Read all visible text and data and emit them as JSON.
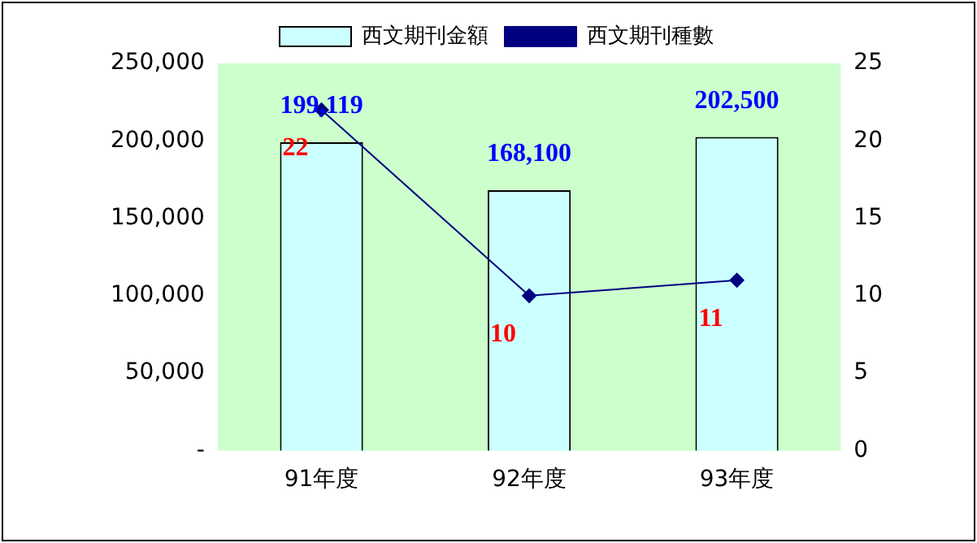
{
  "chart_data": {
    "type": "bar",
    "categories": [
      "91年度",
      "92年度",
      "93年度"
    ],
    "series": [
      {
        "name": "西文期刊金額",
        "color": "#ccffff",
        "values": [
          199119,
          168100,
          202500
        ],
        "value_labels": [
          "199,119",
          "168,100",
          "202,500"
        ]
      },
      {
        "name": "西文期刊種數",
        "type": "line",
        "axis": "y2",
        "color": "#000080",
        "values": [
          22,
          10,
          11
        ],
        "value_labels": [
          "22",
          "10",
          "11"
        ]
      }
    ],
    "ylim": [
      0,
      250000
    ],
    "yticks": [
      {
        "value": 0,
        "label": "-"
      },
      {
        "value": 50000,
        "label": "50,000"
      },
      {
        "value": 100000,
        "label": "100,000"
      },
      {
        "value": 150000,
        "label": "150,000"
      },
      {
        "value": 200000,
        "label": "200,000"
      },
      {
        "value": 250000,
        "label": "250,000"
      }
    ],
    "y2lim": [
      0,
      25
    ],
    "y2ticks": [
      0,
      5,
      10,
      15,
      20,
      25
    ],
    "grid": false,
    "legend": "top",
    "marker": "diamond",
    "line_style": "solid"
  }
}
